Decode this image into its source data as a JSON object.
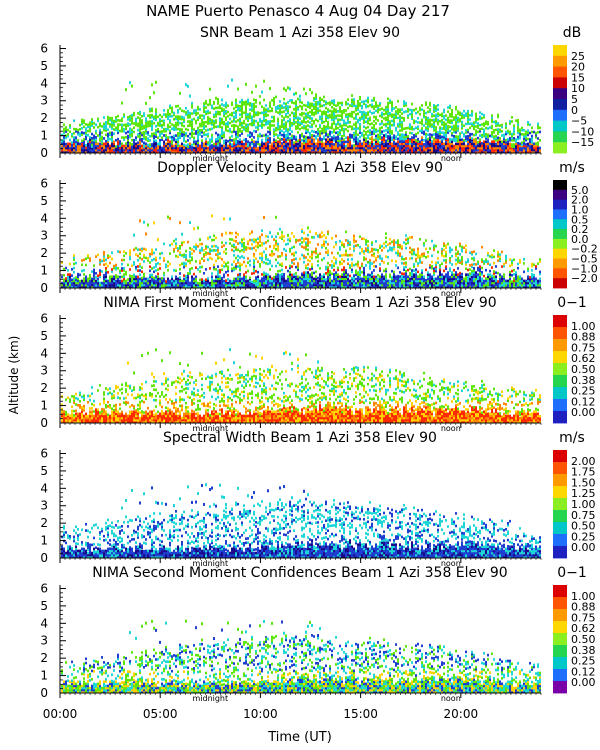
{
  "header": {
    "title": "NAME Puerto Penasco    4 Aug 04 Day 217"
  },
  "y_axis_label": "Altitude (km)",
  "x_axis": {
    "label": "Time (UT)",
    "ticks": [
      "00:00",
      "05:00",
      "10:00",
      "15:00",
      "20:00"
    ],
    "tick_hours": [
      0,
      5,
      10,
      15,
      20
    ],
    "range": [
      0,
      24
    ]
  },
  "time_markers": [
    {
      "label": "midnight",
      "hour": 7.5
    },
    {
      "label": "noon",
      "hour": 19.5
    }
  ],
  "colors": {
    "green": "#5ee60a",
    "cyan": "#1ed6d6",
    "blue": "#1f3fd0",
    "navy": "#1a0a8a",
    "red": "#ff2a00",
    "orange": "#ff8800",
    "yellow": "#ffd200",
    "purple": "#7a00a8"
  },
  "chart_data": [
    {
      "type": "heatmap",
      "title": "SNR Beam 1 Azi 358 Elev 90",
      "unit": "dB",
      "y_ticks": [
        "0",
        "1",
        "2",
        "3",
        "4",
        "5",
        "6"
      ],
      "ylim": [
        0,
        6.2
      ],
      "colorbar": {
        "labels": [
          "25",
          "20",
          "15",
          "10",
          "5",
          "0",
          "−5",
          "−10",
          "−15"
        ],
        "colors": [
          "#ffd700",
          "#ff9900",
          "#ff5500",
          "#cc0000",
          "#3a0080",
          "#1020a0",
          "#1f6fff",
          "#00c8c8",
          "#25d550",
          "#8aee20"
        ]
      }
    },
    {
      "type": "heatmap",
      "title": "Doppler Velocity Beam 1 Azi 358 Elev 90",
      "unit": "m/s",
      "y_ticks": [
        "0",
        "1",
        "2",
        "3",
        "4",
        "5",
        "6"
      ],
      "ylim": [
        0,
        6.2
      ],
      "colorbar": {
        "labels": [
          "5.0",
          "2.0",
          "1.0",
          "0.5",
          "0.2",
          "0.0",
          "−0.2",
          "−0.5",
          "−1.0",
          "−2.0"
        ],
        "colors": [
          "#000000",
          "#3a0080",
          "#1f20c0",
          "#1f6fff",
          "#00c8c8",
          "#25d550",
          "#8aee20",
          "#ffd700",
          "#ff9900",
          "#ff5500",
          "#cc0000"
        ]
      }
    },
    {
      "type": "heatmap",
      "title": "NIMA First Moment Confidences Beam 1 Azi 358 Elev 90",
      "unit": "0−1",
      "y_ticks": [
        "0",
        "1",
        "2",
        "3",
        "4",
        "5",
        "6"
      ],
      "ylim": [
        0,
        6.2
      ],
      "colorbar": {
        "labels": [
          "1.00",
          "0.88",
          "0.75",
          "0.62",
          "0.50",
          "0.38",
          "0.25",
          "0.12",
          "0.00"
        ],
        "colors": [
          "#dd0000",
          "#ff5500",
          "#ff9900",
          "#ffd700",
          "#8aee20",
          "#25d550",
          "#00c8c8",
          "#1f6fff",
          "#1f20c0"
        ]
      }
    },
    {
      "type": "heatmap",
      "title": "Spectral Width Beam 1 Azi 358 Elev 90",
      "unit": "m/s",
      "y_ticks": [
        "0",
        "1",
        "2",
        "3",
        "4",
        "5",
        "6"
      ],
      "ylim": [
        0,
        6.2
      ],
      "colorbar": {
        "labels": [
          "2.00",
          "1.75",
          "1.50",
          "1.25",
          "1.00",
          "0.75",
          "0.50",
          "0.25",
          "0.00"
        ],
        "colors": [
          "#dd0000",
          "#ff5500",
          "#ff9900",
          "#ffd700",
          "#8aee20",
          "#25d550",
          "#00c8c8",
          "#1f6fff",
          "#1f20c0"
        ]
      }
    },
    {
      "type": "heatmap",
      "title": "NIMA Second Moment Confidences Beam 1 Azi 358 Elev 90",
      "unit": "0−1",
      "y_ticks": [
        "0",
        "1",
        "2",
        "3",
        "4",
        "5",
        "6"
      ],
      "ylim": [
        0,
        6.2
      ],
      "colorbar": {
        "labels": [
          "1.00",
          "0.88",
          "0.75",
          "0.62",
          "0.50",
          "0.38",
          "0.25",
          "0.12",
          "0.00"
        ],
        "colors": [
          "#dd0000",
          "#ff5500",
          "#ff9900",
          "#ffd700",
          "#8aee20",
          "#25d550",
          "#00c8c8",
          "#1f6fff",
          "#7a00a8"
        ]
      }
    }
  ]
}
